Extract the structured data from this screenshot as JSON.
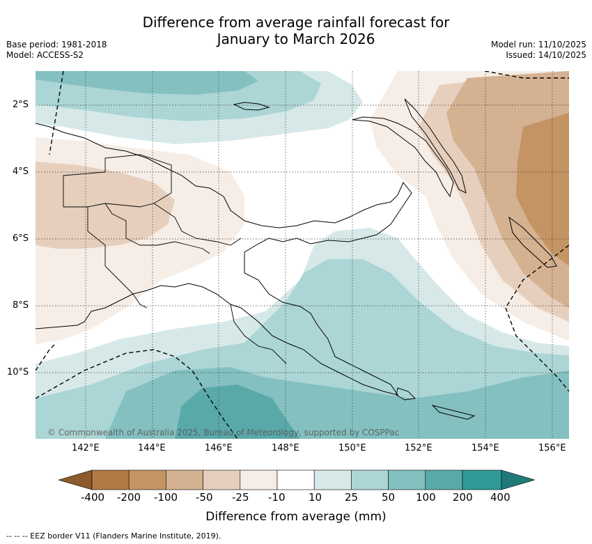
{
  "title_line1": "Difference from average rainfall forecast for",
  "title_line2": "January to March 2026",
  "meta_left": {
    "base_period": "Base period: 1981-2018",
    "model": "Model: ACCESS-S2"
  },
  "meta_right": {
    "model_run": "Model run: 11/10/2025",
    "issued": "Issued: 14/10/2025"
  },
  "latitudes": [
    "2°S",
    "4°S",
    "6°S",
    "8°S",
    "10°S"
  ],
  "longitudes": [
    "142°E",
    "144°E",
    "146°E",
    "148°E",
    "150°E",
    "152°E",
    "154°E",
    "156°E"
  ],
  "copyright": "© Commonwealth of Australia 2025, Bureau of Meteorology, supported by COSPPac",
  "legend": {
    "title": "Difference from average (mm)",
    "labels": [
      "-400",
      "-200",
      "-100",
      "-50",
      "-25",
      "-10",
      "10",
      "25",
      "50",
      "100",
      "200",
      "400"
    ],
    "colors": {
      "lt400": "#8c5a2b",
      "m400_200": "#b07a43",
      "m200_100": "#c49464",
      "m100_50": "#d4b190",
      "m50_25": "#e6cfbd",
      "m25_10": "#f5ede6",
      "m10_10": "#ffffff",
      "p10_25": "#d6e9e8",
      "p25_50": "#acd5d5",
      "p50_100": "#84c0c0",
      "p100_200": "#5aa9a9",
      "p200_400": "#2f9a96",
      "gt400": "#1f7a78"
    }
  },
  "footer": "-- --  -- EEZ border V11 (Flanders Marine Institute, 2019)."
}
